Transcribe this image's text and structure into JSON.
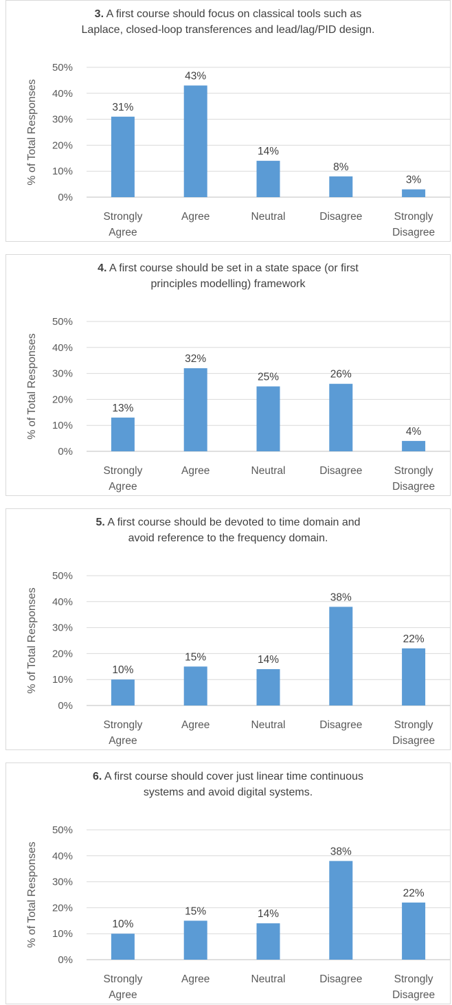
{
  "colors": {
    "bar": "#5b9bd5",
    "grid": "#d9d9d9",
    "axis": "#bfbfbf"
  },
  "chart_data": [
    {
      "type": "bar",
      "title_number": "3.",
      "title_lines": [
        "A first course should focus on classical tools such as",
        "Laplace, closed-loop transferences and lead/lag/PID design."
      ],
      "ylabel": "% of Total Responses",
      "categories": [
        [
          "Strongly",
          "Agree"
        ],
        [
          "Agree"
        ],
        [
          "Neutral"
        ],
        [
          "Disagree"
        ],
        [
          "Strongly",
          "Disagree"
        ]
      ],
      "values": [
        31,
        43,
        14,
        8,
        3
      ],
      "data_labels": [
        "31%",
        "43%",
        "14%",
        "8%",
        "3%"
      ],
      "yticks": [
        "0%",
        "10%",
        "20%",
        "30%",
        "40%",
        "50%"
      ],
      "ylim": [
        0,
        50
      ]
    },
    {
      "type": "bar",
      "title_number": "4.",
      "title_lines": [
        "A first course should be set in a state space (or first",
        "principles modelling) framework"
      ],
      "ylabel": "% of Total Responses",
      "categories": [
        [
          "Strongly",
          "Agree"
        ],
        [
          "Agree"
        ],
        [
          "Neutral"
        ],
        [
          "Disagree"
        ],
        [
          "Strongly",
          "Disagree"
        ]
      ],
      "values": [
        13,
        32,
        25,
        26,
        4
      ],
      "data_labels": [
        "13%",
        "32%",
        "25%",
        "26%",
        "4%"
      ],
      "yticks": [
        "0%",
        "10%",
        "20%",
        "30%",
        "40%",
        "50%"
      ],
      "ylim": [
        0,
        50
      ]
    },
    {
      "type": "bar",
      "title_number": "5.",
      "title_lines": [
        "A first course should be devoted to time domain and",
        "avoid reference to the frequency domain."
      ],
      "ylabel": "% of Total Responses",
      "categories": [
        [
          "Strongly",
          "Agree"
        ],
        [
          "Agree"
        ],
        [
          "Neutral"
        ],
        [
          "Disagree"
        ],
        [
          "Strongly",
          "Disagree"
        ]
      ],
      "values": [
        10,
        15,
        14,
        38,
        22
      ],
      "data_labels": [
        "10%",
        "15%",
        "14%",
        "38%",
        "22%"
      ],
      "yticks": [
        "0%",
        "10%",
        "20%",
        "30%",
        "40%",
        "50%"
      ],
      "ylim": [
        0,
        50
      ]
    },
    {
      "type": "bar",
      "title_number": "6.",
      "title_lines": [
        "A first course should cover just linear time continuous",
        "systems and avoid digital systems."
      ],
      "ylabel": "% of Total Responses",
      "categories": [
        [
          "Strongly",
          "Agree"
        ],
        [
          "Agree"
        ],
        [
          "Neutral"
        ],
        [
          "Disagree"
        ],
        [
          "Strongly",
          "Disagree"
        ]
      ],
      "values": [
        10,
        15,
        14,
        38,
        22
      ],
      "data_labels": [
        "10%",
        "15%",
        "14%",
        "38%",
        "22%"
      ],
      "yticks": [
        "0%",
        "10%",
        "20%",
        "30%",
        "40%",
        "50%"
      ],
      "ylim": [
        0,
        50
      ]
    }
  ]
}
